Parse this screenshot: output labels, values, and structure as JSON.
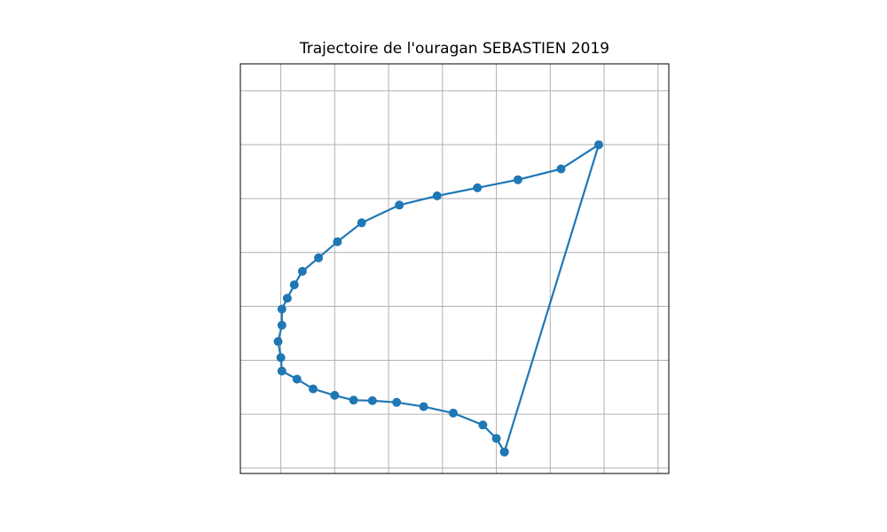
{
  "chart_data": {
    "type": "scatter",
    "title": "Trajectoire de l'ouragan SEBASTIEN 2019",
    "xlabel": "",
    "ylabel": "",
    "xlim": [
      -53.75,
      -45.8
    ],
    "ylim": [
      19.4,
      27.0
    ],
    "grid": true,
    "x_gridlines": [
      -53,
      -52,
      -51,
      -50,
      -49,
      -48,
      -47,
      -46
    ],
    "y_gridlines": [
      19.5,
      20.5,
      21.5,
      22.5,
      23.5,
      24.5,
      25.5,
      26.5
    ],
    "series": [
      {
        "color": "#1f77b4",
        "markers": true,
        "x": [
          -48.85,
          -49.0,
          -49.25,
          -49.8,
          -50.35,
          -50.85,
          -51.3,
          -51.65,
          -52.0,
          -52.4,
          -52.7,
          -52.98,
          -53.0,
          -53.05,
          -52.98,
          -52.98,
          -52.88,
          -52.75,
          -52.6,
          -52.3,
          -51.95,
          -51.5,
          -50.8,
          -50.1,
          -49.35,
          -48.6,
          -47.8,
          -47.1,
          -48.85
        ],
        "y": [
          19.8,
          20.05,
          20.3,
          20.52,
          20.64,
          20.72,
          20.75,
          20.76,
          20.85,
          20.97,
          21.15,
          21.3,
          21.55,
          21.85,
          22.15,
          22.45,
          22.65,
          22.9,
          23.15,
          23.4,
          23.7,
          24.05,
          24.38,
          24.55,
          24.7,
          24.85,
          25.05,
          25.5,
          19.8
        ]
      }
    ]
  }
}
